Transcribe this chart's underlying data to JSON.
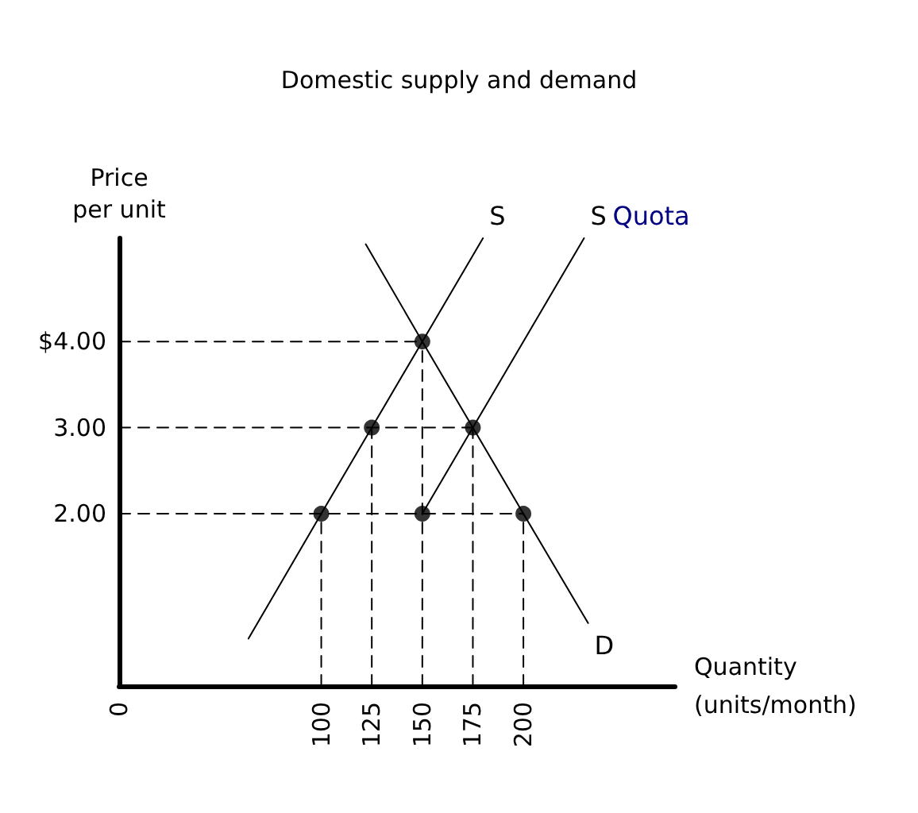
{
  "chart_data": {
    "type": "line",
    "title": "Domestic supply and demand",
    "xlabel": "Quantity\n(units/month)",
    "ylabel": "Price\nper unit",
    "xlim": [
      0,
      275
    ],
    "ylim": [
      0,
      5.2
    ],
    "xticks": [
      0,
      100,
      125,
      150,
      175,
      200
    ],
    "yticks": [
      {
        "value": 2,
        "label": "2.00"
      },
      {
        "value": 3,
        "label": "3.00"
      },
      {
        "value": 4,
        "label": "$4.00"
      }
    ],
    "grid": false,
    "series": [
      {
        "name": "S",
        "color": "#000000",
        "line_style": "solid",
        "marker": "none",
        "x": [
          64,
          100,
          125,
          150,
          180
        ],
        "values": [
          0.55,
          2,
          3,
          4,
          5.2
        ]
      },
      {
        "name": "S",
        "color": "#000000",
        "line_style": "solid",
        "marker": "none",
        "x": [
          150,
          175,
          230
        ],
        "values": [
          2,
          3,
          5.2
        ]
      },
      {
        "name": "D",
        "color": "#000000",
        "line_style": "solid",
        "marker": "none",
        "x": [
          122,
          150,
          175,
          200,
          232
        ],
        "values": [
          5.13,
          4,
          3,
          2,
          0.73
        ]
      },
      {
        "color": "#000000",
        "line_style": "dashed",
        "marker": "none",
        "x": [
          0,
          150
        ],
        "values": [
          4,
          4
        ]
      },
      {
        "color": "#000000",
        "line_style": "dashed",
        "marker": "none",
        "x": [
          0,
          175
        ],
        "values": [
          3,
          3
        ]
      },
      {
        "color": "#000000",
        "line_style": "dashed",
        "marker": "none",
        "x": [
          0,
          200
        ],
        "values": [
          2,
          2
        ]
      },
      {
        "color": "#000000",
        "line_style": "dashed",
        "marker": "none",
        "x": [
          100,
          100
        ],
        "values": [
          0,
          2
        ]
      },
      {
        "color": "#000000",
        "line_style": "dashed",
        "marker": "none",
        "x": [
          125,
          125
        ],
        "values": [
          0,
          3
        ]
      },
      {
        "color": "#000000",
        "line_style": "dashed",
        "marker": "none",
        "x": [
          150,
          150
        ],
        "values": [
          0,
          4
        ]
      },
      {
        "color": "#000000",
        "line_style": "dashed",
        "marker": "none",
        "x": [
          175,
          175
        ],
        "values": [
          0,
          3
        ]
      },
      {
        "color": "#000000",
        "line_style": "dashed",
        "marker": "none",
        "x": [
          200,
          200
        ],
        "values": [
          0,
          2
        ]
      },
      {
        "type": "scatter",
        "color": "#000000",
        "marker": "circle",
        "x": [
          100,
          125,
          150,
          150,
          175,
          200
        ],
        "values": [
          2,
          3,
          4,
          2,
          3,
          2
        ]
      }
    ],
    "annotations": [
      {
        "text": "Quota",
        "x": 230,
        "y": 5.2
      }
    ]
  }
}
